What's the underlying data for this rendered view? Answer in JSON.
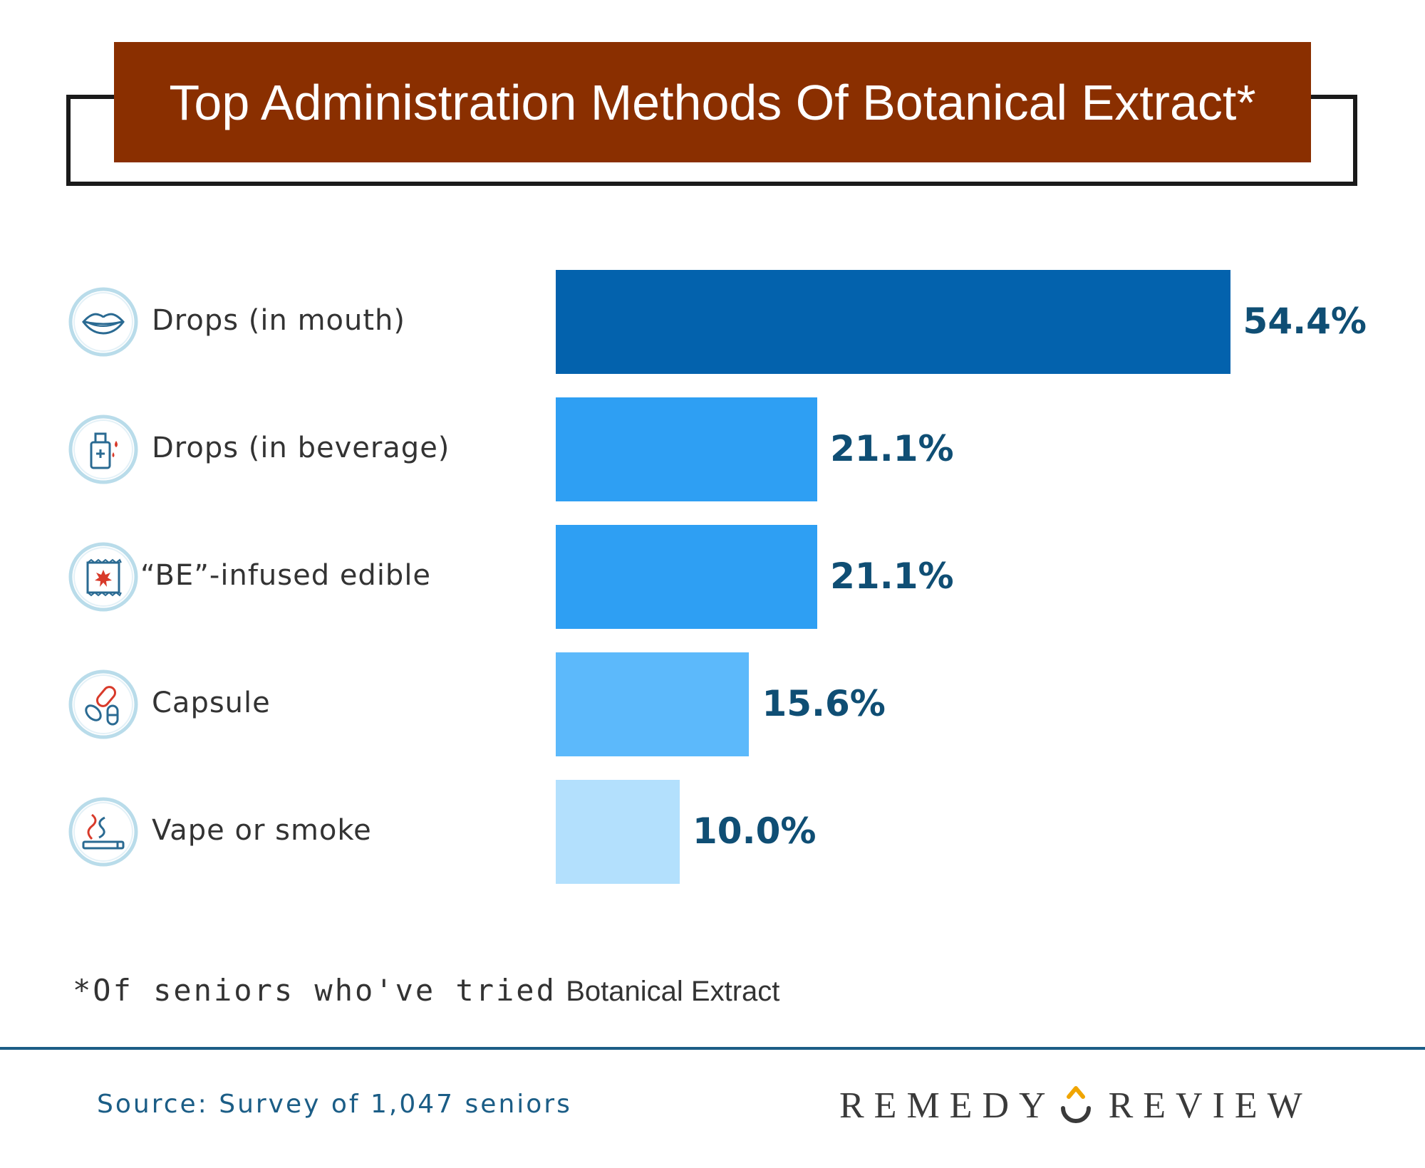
{
  "title": "Top Administration Methods Of Botanical Extract*",
  "chart_data": {
    "type": "bar",
    "orientation": "horizontal",
    "title": "Top Administration Methods Of Botanical Extract*",
    "categories": [
      "Drops (in mouth)",
      "Drops (in beverage)",
      "“BE”-infused edible",
      "Capsule",
      "Vape or smoke"
    ],
    "values": [
      54.4,
      21.1,
      21.1,
      15.6,
      10.0
    ],
    "value_labels": [
      "54.4%",
      "21.1%",
      "21.1%",
      "15.6%",
      "10.0%"
    ],
    "units": "%",
    "colors": [
      "#0362ad",
      "#2e9ff3",
      "#2e9ff3",
      "#5cb9fb",
      "#b3e0fd"
    ],
    "icons": [
      "lips-icon",
      "bottle-dropper-icon",
      "edible-package-icon",
      "capsule-icon",
      "cigarette-smoke-icon"
    ],
    "grid": false,
    "legend": "none"
  },
  "footnote": {
    "mark": "*Of seniors who've tried",
    "rest": "Botanical Extract"
  },
  "source": "Source: Survey of 1,047 seniors",
  "brand": {
    "left": "REMEDY",
    "right": "REVIEW",
    "accent_color": "#f0a500"
  },
  "colors": {
    "title_bg": "#8a2f00",
    "value_text": "#0f4e74",
    "source_text": "#1b5d86",
    "icon_ring": "#b9dcea",
    "icon_line": "#2a6a92",
    "icon_accent": "#d83a2a"
  }
}
